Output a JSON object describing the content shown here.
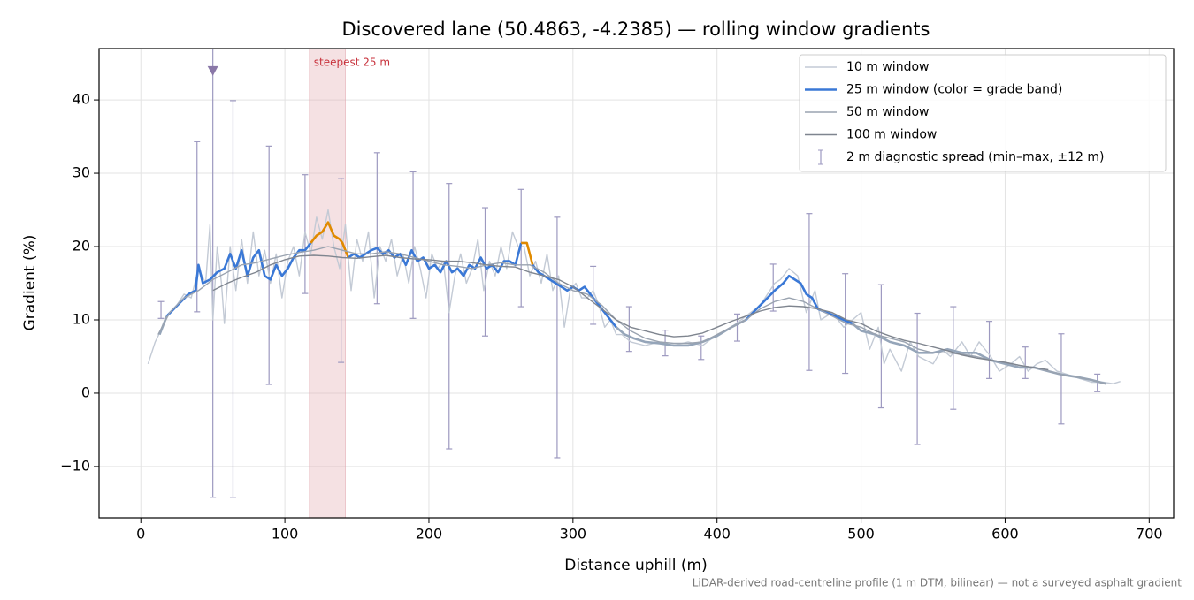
{
  "chart_data": {
    "type": "line",
    "title": "Discovered lane (50.4863, -4.2385) — rolling window gradients",
    "x_label": "Distance uphill (m)",
    "y_label": "Gradient (%)",
    "footnote": "LiDAR-derived road-centreline profile (1 m DTM, bilinear) — not a surveyed asphalt gradient",
    "xlim": [
      -29,
      717
    ],
    "ylim": [
      -17,
      47
    ],
    "xticks": [
      0,
      100,
      200,
      300,
      400,
      500,
      600,
      700
    ],
    "yticks": [
      {
        "value": -10,
        "label": "−10"
      },
      0,
      10,
      20,
      30,
      40
    ],
    "grid": true,
    "legend": "upper right",
    "highlight": {
      "label": "steepest 25 m",
      "from": 117,
      "to": 142,
      "color": "#e3a9b0"
    },
    "series": [
      {
        "name": "10 m window",
        "color": "#c3cad5",
        "x": [
          5,
          10,
          15,
          20,
          25,
          30,
          35,
          40,
          45,
          48,
          50,
          53,
          56,
          58,
          62,
          66,
          70,
          74,
          78,
          82,
          86,
          90,
          94,
          98,
          102,
          106,
          110,
          114,
          118,
          122,
          126,
          130,
          134,
          138,
          142,
          146,
          150,
          154,
          158,
          162,
          166,
          170,
          174,
          178,
          182,
          186,
          190,
          194,
          198,
          202,
          206,
          210,
          214,
          218,
          222,
          226,
          230,
          234,
          238,
          242,
          246,
          250,
          254,
          258,
          262,
          266,
          270,
          274,
          278,
          282,
          286,
          290,
          294,
          298,
          302,
          306,
          310,
          314,
          318,
          322,
          326,
          330,
          334,
          340,
          350,
          360,
          370,
          380,
          390,
          400,
          410,
          420,
          430,
          440,
          444,
          450,
          456,
          462,
          468,
          472,
          480,
          488,
          494,
          500,
          506,
          512,
          516,
          520,
          528,
          534,
          540,
          550,
          556,
          562,
          570,
          576,
          582,
          590,
          596,
          604,
          610,
          616,
          622,
          628,
          636,
          644,
          652,
          660,
          668,
          675,
          680
        ],
        "values": [
          4,
          7,
          9,
          11,
          12,
          13.5,
          13,
          17,
          15,
          23,
          10,
          20,
          15,
          9.5,
          20,
          14,
          21,
          15,
          22,
          16,
          19.5,
          15,
          19,
          13,
          18,
          20,
          16,
          22,
          19,
          24,
          21,
          25,
          20,
          17,
          23,
          14,
          21,
          18,
          22,
          13,
          20,
          18,
          21,
          16,
          19,
          15,
          20,
          17,
          13,
          19,
          17,
          18,
          11,
          16,
          19,
          15,
          17,
          21,
          14,
          18,
          16,
          20,
          17,
          22,
          20,
          20,
          16,
          18,
          15,
          19,
          14,
          16,
          9,
          14,
          15,
          13,
          13,
          14,
          12,
          9,
          10,
          8,
          8,
          7,
          6.5,
          7,
          6.5,
          7,
          6.5,
          8,
          9,
          10.5,
          12,
          15,
          15.5,
          17,
          16,
          11,
          14,
          10,
          11,
          9,
          10,
          11,
          6,
          9,
          4,
          6,
          3,
          7,
          5,
          4,
          6,
          5,
          7,
          5,
          7,
          5,
          3,
          4,
          5,
          3,
          4,
          4.5,
          3,
          2.5,
          2,
          1.5,
          1.5,
          1.3,
          1.6
        ]
      },
      {
        "name": "25 m window (color = grade band)",
        "color": "#3a78d6",
        "width": 2.6,
        "band_limits": [
          10,
          20
        ],
        "band_colors": [
          "#95a5b9",
          "#3a78d6",
          "#e08a00"
        ],
        "x": [
          13,
          18,
          23,
          28,
          33,
          38,
          40,
          43,
          48,
          53,
          58,
          62,
          66,
          70,
          74,
          78,
          82,
          86,
          90,
          94,
          98,
          102,
          106,
          110,
          114,
          118,
          122,
          126,
          130,
          134,
          138,
          140,
          144,
          148,
          152,
          156,
          160,
          164,
          168,
          172,
          176,
          180,
          184,
          188,
          192,
          196,
          200,
          204,
          208,
          212,
          216,
          220,
          224,
          228,
          232,
          236,
          240,
          244,
          248,
          252,
          256,
          260,
          264,
          268,
          272,
          276,
          280,
          284,
          288,
          292,
          296,
          300,
          304,
          308,
          312,
          318,
          324,
          330,
          336,
          342,
          350,
          360,
          370,
          380,
          390,
          400,
          410,
          420,
          430,
          440,
          446,
          450,
          454,
          458,
          462,
          466,
          470,
          476,
          482,
          488,
          494,
          500,
          510,
          520,
          530,
          540,
          550,
          560,
          570,
          580,
          590,
          600,
          610,
          620,
          630,
          640,
          650,
          660,
          670
        ],
        "values": [
          8,
          10.5,
          11.5,
          12.5,
          13.5,
          14,
          17.5,
          15,
          15.5,
          16.5,
          17,
          19,
          17,
          19.5,
          16,
          18.5,
          19.5,
          16,
          15.5,
          17.5,
          16,
          17,
          18.5,
          19.5,
          19.5,
          20.5,
          21.5,
          22,
          23.3,
          21.5,
          21,
          20.5,
          18.5,
          19,
          18.5,
          19,
          19.5,
          19.8,
          19,
          19.5,
          18.5,
          19,
          17.5,
          19.5,
          18,
          18.5,
          17,
          17.5,
          16.5,
          18,
          16.5,
          17,
          16,
          17.5,
          17,
          18.5,
          17,
          17.5,
          16.5,
          18,
          18,
          17.5,
          20.5,
          20.5,
          17.5,
          16.5,
          16,
          15.5,
          15,
          14.5,
          14,
          14.5,
          14,
          14.5,
          13.5,
          12,
          10.5,
          9,
          8,
          7.5,
          7,
          6.8,
          6.5,
          6.5,
          7,
          7.8,
          9,
          10,
          12,
          14,
          15,
          16,
          15.5,
          15,
          13.5,
          13,
          11.5,
          11,
          10.5,
          10,
          9.5,
          8.5,
          8,
          7,
          6.5,
          5.5,
          5.5,
          6,
          5.5,
          5.5,
          4.5,
          4,
          3.5,
          3.5,
          3,
          2.5,
          2.2,
          1.8,
          1.3
        ]
      },
      {
        "name": "50 m window",
        "color": "#9aa3b0",
        "x": [
          12,
          20,
          30,
          40,
          50,
          60,
          70,
          80,
          90,
          100,
          110,
          120,
          130,
          140,
          150,
          160,
          170,
          180,
          190,
          200,
          210,
          220,
          230,
          240,
          250,
          260,
          270,
          280,
          290,
          300,
          310,
          320,
          330,
          340,
          350,
          360,
          370,
          380,
          390,
          400,
          410,
          420,
          430,
          440,
          450,
          460,
          470,
          480,
          490,
          500,
          510,
          520,
          530,
          540,
          550,
          560,
          570,
          580,
          590,
          600,
          610,
          620,
          630,
          640,
          650,
          660,
          670
        ],
        "values": [
          8,
          11,
          13,
          14,
          15.5,
          16.5,
          17.5,
          17.8,
          18.3,
          18.8,
          19.2,
          19.5,
          20,
          19.5,
          19,
          19,
          19.3,
          19,
          18.5,
          18,
          17.5,
          17.3,
          17,
          17.5,
          17.8,
          17.5,
          17.5,
          16.5,
          15,
          14,
          13.5,
          12,
          10,
          8.5,
          7.5,
          7,
          6.8,
          6.8,
          7,
          8,
          9,
          10,
          11.5,
          12.5,
          13,
          12.5,
          11.5,
          10.5,
          9.5,
          9,
          8,
          7.5,
          7,
          6,
          5.5,
          5.5,
          5.3,
          5,
          4.5,
          4.2,
          3.8,
          3.5,
          3,
          2.5,
          2.2,
          1.8,
          1.3
        ]
      },
      {
        "name": "100 m window",
        "color": "#7f858f",
        "x": [
          50,
          60,
          70,
          80,
          90,
          100,
          110,
          120,
          130,
          140,
          150,
          160,
          170,
          180,
          190,
          200,
          210,
          220,
          230,
          240,
          250,
          260,
          270,
          280,
          290,
          300,
          310,
          320,
          330,
          340,
          350,
          360,
          370,
          380,
          390,
          400,
          410,
          420,
          430,
          440,
          450,
          460,
          470,
          480,
          490,
          500,
          510,
          520,
          530,
          540,
          550,
          560,
          570,
          580,
          590,
          600,
          610,
          620,
          630
        ],
        "values": [
          14,
          15,
          15.8,
          16.5,
          17.5,
          18.2,
          18.7,
          18.8,
          18.7,
          18.5,
          18.4,
          18.6,
          18.8,
          18.5,
          18.3,
          18.2,
          18,
          18,
          17.8,
          17.5,
          17.3,
          17.2,
          16.5,
          16,
          15.5,
          14.5,
          13,
          11.5,
          10,
          9,
          8.5,
          8,
          7.7,
          7.8,
          8.2,
          9,
          9.8,
          10.5,
          11.2,
          11.7,
          11.9,
          11.8,
          11.5,
          11,
          10,
          9.5,
          8.5,
          7.8,
          7.2,
          6.8,
          6.3,
          5.8,
          5.2,
          4.8,
          4.5,
          4.2,
          3.8,
          3.5,
          3.2
        ]
      }
    ],
    "error_bars": {
      "name": "2 m diagnostic spread (min–max, ±12 m)",
      "color": "#9d99c0",
      "x": [
        14,
        39,
        50,
        64,
        89,
        114,
        139,
        164,
        189,
        214,
        239,
        264,
        289,
        314,
        339,
        364,
        389,
        414,
        439,
        464,
        489,
        514,
        539,
        564,
        589,
        614,
        639,
        664
      ],
      "low": [
        10.2,
        11.1,
        -14.2,
        -14.2,
        1.2,
        13.6,
        4.2,
        12.2,
        10.2,
        -7.6,
        7.8,
        11.8,
        -8.8,
        9.4,
        5.7,
        5.1,
        4.6,
        7.1,
        11.2,
        3.1,
        2.7,
        -2.0,
        -7.0,
        -2.2,
        2.0,
        2.0,
        -4.2,
        0.2
      ],
      "high": [
        12.5,
        34.3,
        null,
        39.9,
        33.7,
        29.8,
        29.3,
        32.8,
        30.2,
        28.6,
        25.3,
        27.8,
        24.0,
        17.3,
        11.8,
        8.6,
        7.8,
        10.8,
        17.6,
        24.5,
        16.3,
        14.8,
        10.9,
        11.8,
        9.8,
        6.3,
        8.1,
        2.6
      ]
    },
    "markers": {
      "x": [
        50
      ],
      "values": [
        44
      ],
      "color": "#8a78a8"
    }
  }
}
